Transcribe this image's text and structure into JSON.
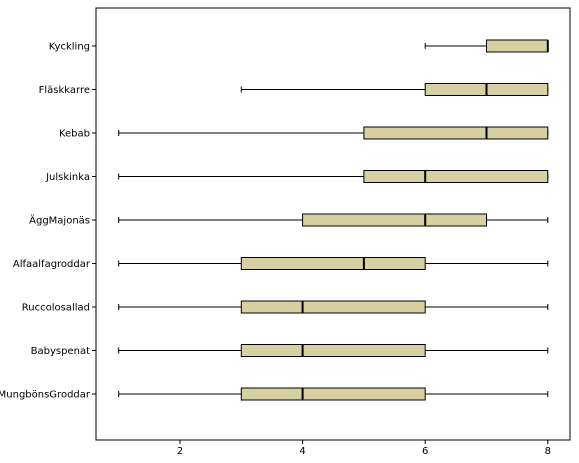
{
  "chart_data": {
    "type": "boxplot",
    "orientation": "horizontal",
    "xlim": [
      0.4,
      8.4
    ],
    "x_ticks": [
      2,
      4,
      6,
      8
    ],
    "x_tick_labels": [
      "2",
      "4",
      "6",
      "8"
    ],
    "grid": false,
    "box_color": "#d6d0a2",
    "categories": [
      "Kyckling",
      "Fläskkarre",
      "Kebab",
      "Julskinka",
      "ÄggMajonäs",
      "Alfaalfagroddar",
      "Ruccolosallad",
      "Babyspenat",
      "MungbönsGroddar"
    ],
    "boxes": [
      {
        "label": "Kyckling",
        "min": 6,
        "q1": 7,
        "median": 8,
        "q3": 8,
        "max": 8
      },
      {
        "label": "Fläskkarre",
        "min": 3,
        "q1": 6,
        "median": 7,
        "q3": 8,
        "max": 8
      },
      {
        "label": "Kebab",
        "min": 1,
        "q1": 5,
        "median": 7,
        "q3": 8,
        "max": 8
      },
      {
        "label": "Julskinka",
        "min": 1,
        "q1": 5,
        "median": 6,
        "q3": 8,
        "max": 8
      },
      {
        "label": "ÄggMajonäs",
        "min": 1,
        "q1": 4,
        "median": 6,
        "q3": 7,
        "max": 8
      },
      {
        "label": "Alfaalfagroddar",
        "min": 1,
        "q1": 3,
        "median": 5,
        "q3": 6,
        "max": 8
      },
      {
        "label": "Ruccolosallad",
        "min": 1,
        "q1": 3,
        "median": 4,
        "q3": 6,
        "max": 8
      },
      {
        "label": "Babyspenat",
        "min": 1,
        "q1": 3,
        "median": 4,
        "q3": 6,
        "max": 8
      },
      {
        "label": "MungbönsGroddar",
        "min": 1,
        "q1": 3,
        "median": 4,
        "q3": 6,
        "max": 8
      }
    ]
  }
}
